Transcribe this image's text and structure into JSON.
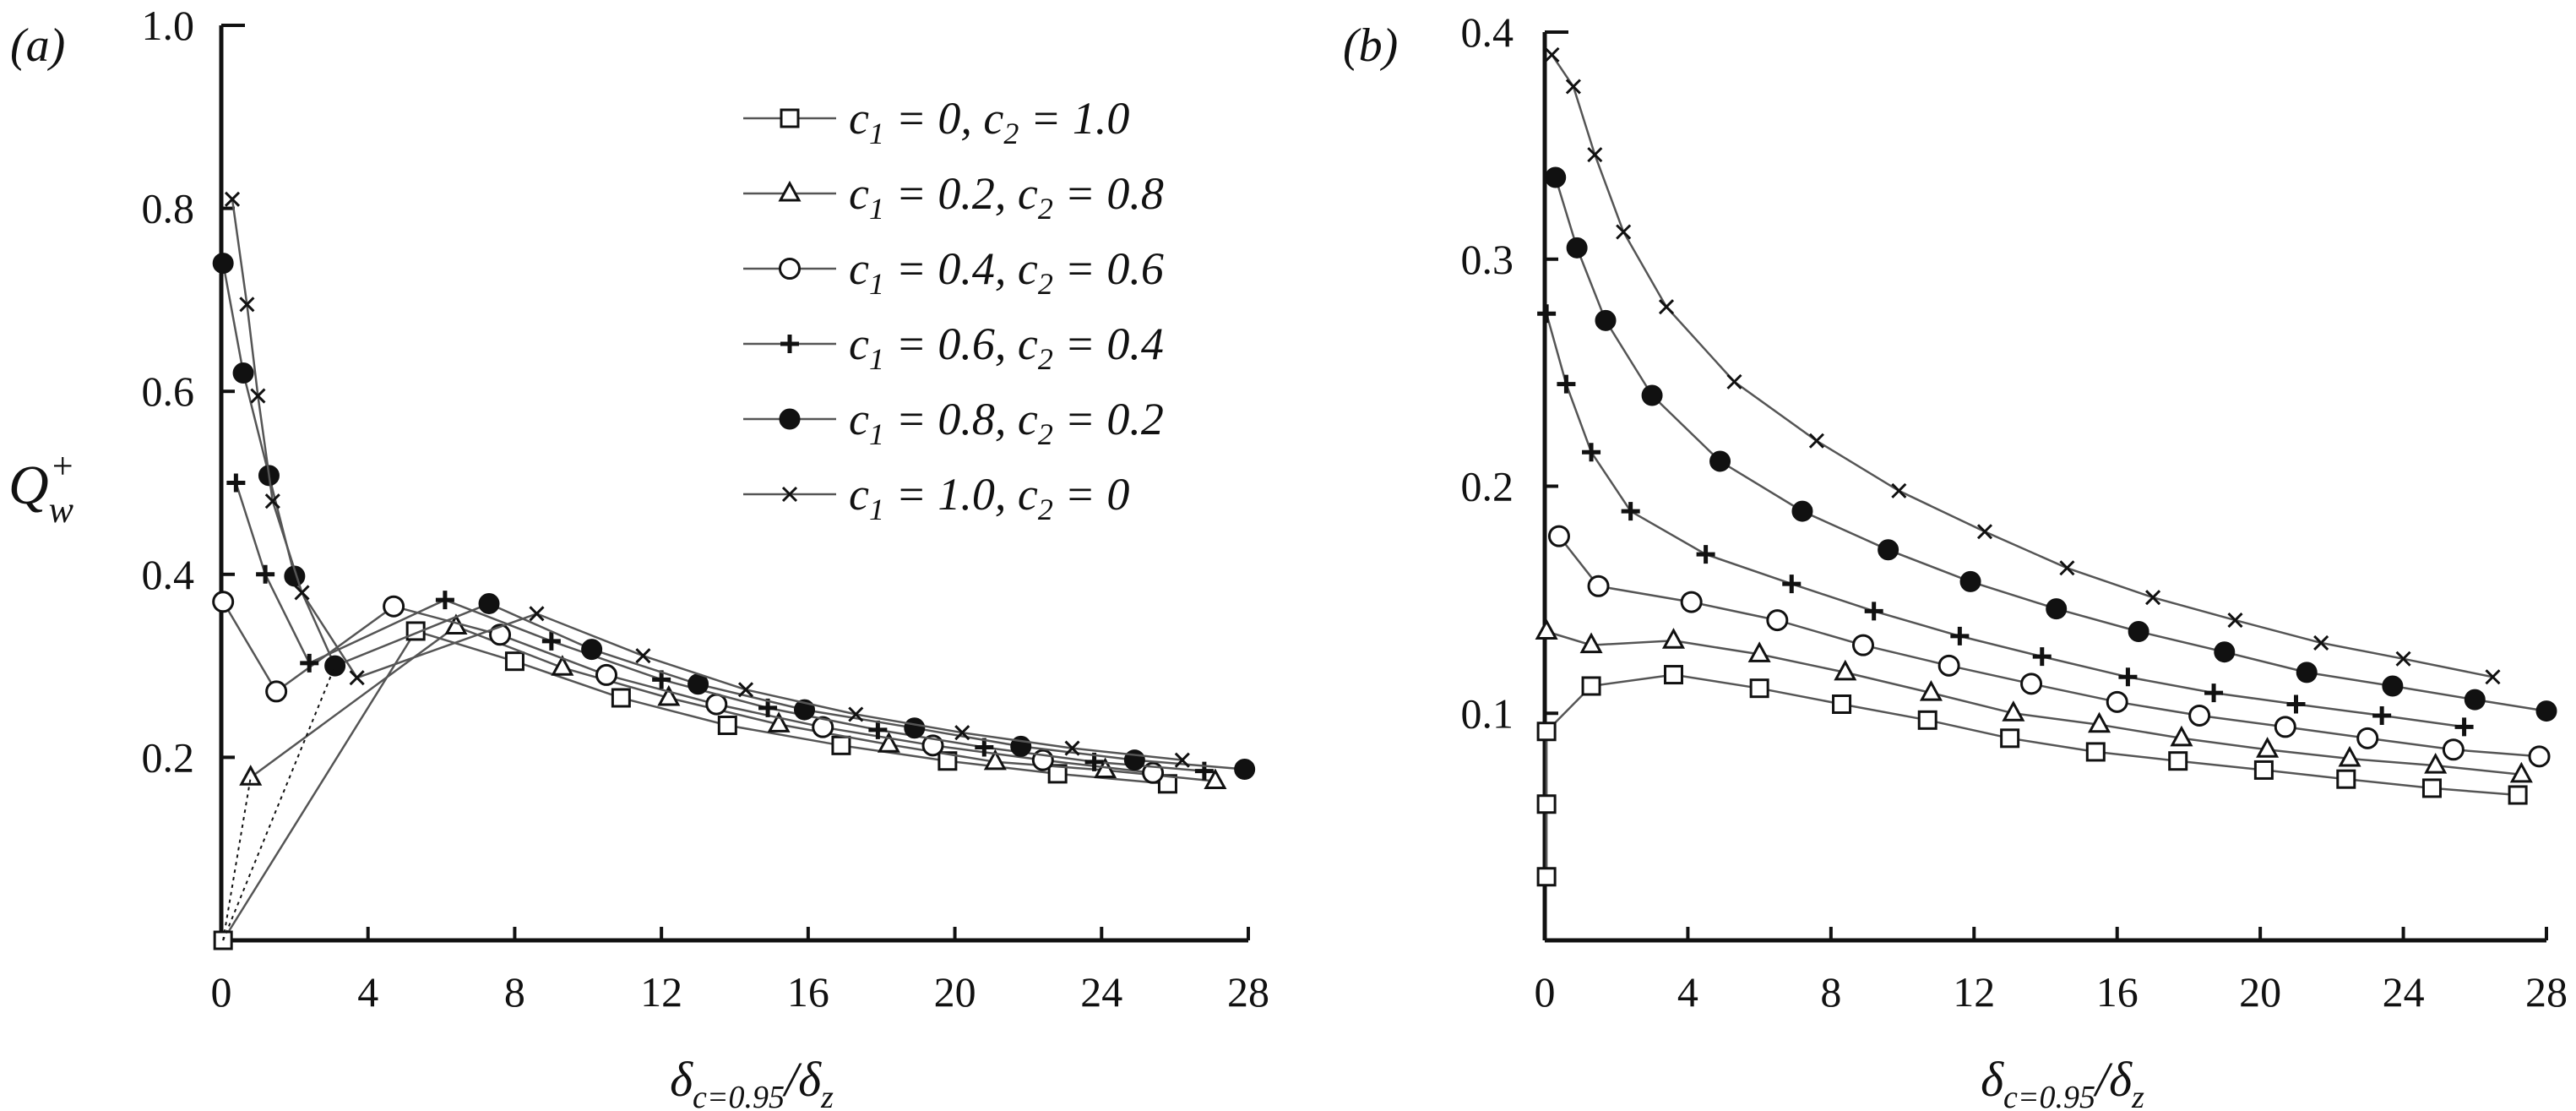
{
  "chart_data": [
    {
      "panel_label": "(a)",
      "type": "line",
      "xlabel": "δc=0.95/δz",
      "ylabel": "Qw+",
      "xlim": [
        0,
        28
      ],
      "ylim": [
        0,
        1.0
      ],
      "xticks": [
        "0",
        "4",
        "8",
        "12",
        "16",
        "20",
        "24",
        "28"
      ],
      "yticks": [
        "0.2",
        "0.4",
        "0.6",
        "0.8",
        "1.0"
      ],
      "legend_position": "top-right",
      "series": [
        {
          "name": "c1 = 0, c2 = 1.0",
          "marker": "square",
          "x": [
            0.05,
            5.3,
            8.0,
            10.9,
            13.8,
            16.9,
            19.8,
            22.8,
            25.8
          ],
          "y": [
            0.0,
            0.338,
            0.305,
            0.265,
            0.235,
            0.213,
            0.196,
            0.182,
            0.171
          ]
        },
        {
          "name": "c1 = 0.2, c2 = 0.8",
          "marker": "triangle",
          "x": [
            0.8,
            6.4,
            9.3,
            12.2,
            15.2,
            18.2,
            21.1,
            24.1,
            27.1
          ],
          "y": [
            0.178,
            0.343,
            0.298,
            0.265,
            0.236,
            0.214,
            0.195,
            0.186,
            0.174
          ]
        },
        {
          "name": "c1 = 0.4, c2 = 0.6",
          "marker": "circle",
          "x": [
            0.05,
            1.5,
            4.7,
            7.6,
            10.5,
            13.5,
            16.4,
            19.4,
            22.4,
            25.4
          ],
          "y": [
            0.37,
            0.272,
            0.365,
            0.334,
            0.29,
            0.258,
            0.233,
            0.213,
            0.197,
            0.183
          ]
        },
        {
          "name": "c1 = 0.6, c2 = 0.4",
          "marker": "plus",
          "x": [
            0.4,
            1.2,
            2.4,
            6.1,
            9.0,
            12.0,
            14.9,
            17.9,
            20.8,
            23.8,
            26.8
          ],
          "y": [
            0.5,
            0.4,
            0.303,
            0.372,
            0.327,
            0.285,
            0.254,
            0.23,
            0.211,
            0.195,
            0.185
          ]
        },
        {
          "name": "c1 = 0.8, c2 = 0.2",
          "marker": "filled-circle",
          "x": [
            0.05,
            0.6,
            1.3,
            2.0,
            3.1,
            7.3,
            10.1,
            13.0,
            15.9,
            18.9,
            21.8,
            24.9,
            27.9
          ],
          "y": [
            0.74,
            0.62,
            0.508,
            0.398,
            0.3,
            0.368,
            0.318,
            0.28,
            0.252,
            0.232,
            0.212,
            0.197,
            0.187
          ]
        },
        {
          "name": "c1 = 1.0, c2 = 0",
          "marker": "x",
          "x": [
            0.3,
            0.7,
            1.0,
            1.4,
            2.2,
            3.7,
            8.6,
            11.5,
            14.3,
            17.3,
            20.2,
            23.2,
            26.2
          ],
          "y": [
            0.81,
            0.695,
            0.595,
            0.48,
            0.38,
            0.287,
            0.357,
            0.311,
            0.274,
            0.247,
            0.227,
            0.21,
            0.197
          ]
        }
      ]
    },
    {
      "panel_label": "(b)",
      "type": "line",
      "xlabel": "δc=0.95/δz",
      "ylabel": "",
      "xlim": [
        0,
        28
      ],
      "ylim": [
        0,
        0.4
      ],
      "xticks": [
        "0",
        "4",
        "8",
        "12",
        "16",
        "20",
        "24",
        "28"
      ],
      "yticks": [
        "0.1",
        "0.2",
        "0.3",
        "0.4"
      ],
      "series": [
        {
          "name": "c1 = 0, c2 = 1.0",
          "marker": "square",
          "x": [
            0.05,
            0.05,
            0.05,
            1.3,
            3.6,
            6.0,
            8.3,
            10.7,
            13.0,
            15.4,
            17.7,
            20.1,
            22.4,
            24.8,
            27.2
          ],
          "y": [
            0.028,
            0.06,
            0.092,
            0.112,
            0.117,
            0.111,
            0.104,
            0.097,
            0.089,
            0.083,
            0.079,
            0.075,
            0.071,
            0.067,
            0.064
          ]
        },
        {
          "name": "c1 = 0.2, c2 = 0.8",
          "marker": "triangle",
          "x": [
            0.05,
            1.3,
            3.6,
            6.0,
            8.4,
            10.8,
            13.1,
            15.5,
            17.8,
            20.2,
            22.5,
            24.9,
            27.3
          ],
          "y": [
            0.136,
            0.13,
            0.132,
            0.126,
            0.118,
            0.109,
            0.1,
            0.095,
            0.089,
            0.084,
            0.08,
            0.077,
            0.073
          ]
        },
        {
          "name": "c1 = 0.4, c2 = 0.6",
          "marker": "circle",
          "x": [
            0.4,
            1.5,
            4.1,
            6.5,
            8.9,
            11.3,
            13.6,
            16.0,
            18.3,
            20.7,
            23.0,
            25.4,
            27.8
          ],
          "y": [
            0.178,
            0.156,
            0.149,
            0.141,
            0.13,
            0.121,
            0.113,
            0.105,
            0.099,
            0.094,
            0.089,
            0.084,
            0.081
          ]
        },
        {
          "name": "c1 = 0.6, c2 = 0.4",
          "marker": "plus",
          "x": [
            0.05,
            0.6,
            1.3,
            2.4,
            4.5,
            6.9,
            9.2,
            11.6,
            13.9,
            16.3,
            18.7,
            21.0,
            23.4,
            25.7
          ],
          "y": [
            0.276,
            0.245,
            0.215,
            0.189,
            0.17,
            0.157,
            0.145,
            0.134,
            0.125,
            0.116,
            0.109,
            0.104,
            0.099,
            0.094
          ]
        },
        {
          "name": "c1 = 0.8, c2 = 0.2",
          "marker": "filled-circle",
          "x": [
            0.3,
            0.9,
            1.7,
            3.0,
            4.9,
            7.2,
            9.6,
            11.9,
            14.3,
            16.6,
            19.0,
            21.3,
            23.7,
            26.0,
            28.0
          ],
          "y": [
            0.336,
            0.305,
            0.273,
            0.24,
            0.211,
            0.189,
            0.172,
            0.158,
            0.146,
            0.136,
            0.127,
            0.118,
            0.112,
            0.106,
            0.101
          ]
        },
        {
          "name": "c1 = 1.0, c2 = 0",
          "marker": "x",
          "x": [
            0.2,
            0.8,
            1.4,
            2.2,
            3.4,
            5.3,
            7.6,
            9.9,
            12.3,
            14.6,
            17.0,
            19.3,
            21.7,
            24.0,
            26.5
          ],
          "y": [
            0.39,
            0.376,
            0.346,
            0.312,
            0.279,
            0.246,
            0.22,
            0.198,
            0.18,
            0.164,
            0.151,
            0.141,
            0.131,
            0.124,
            0.116
          ]
        }
      ]
    }
  ],
  "legend": {
    "entries": [
      {
        "marker": "square",
        "c1": "0",
        "c2": "1.0"
      },
      {
        "marker": "triangle",
        "c1": "0.2",
        "c2": "0.8"
      },
      {
        "marker": "circle",
        "c1": "0.4",
        "c2": "0.6"
      },
      {
        "marker": "plus",
        "c1": "0.6",
        "c2": "0.4"
      },
      {
        "marker": "filled-circle",
        "c1": "0.8",
        "c2": "0.2"
      },
      {
        "marker": "x",
        "c1": "1.0",
        "c2": "0"
      }
    ]
  },
  "colors": {
    "ink": "#111111",
    "curve": "#555555",
    "background": "#ffffff"
  }
}
